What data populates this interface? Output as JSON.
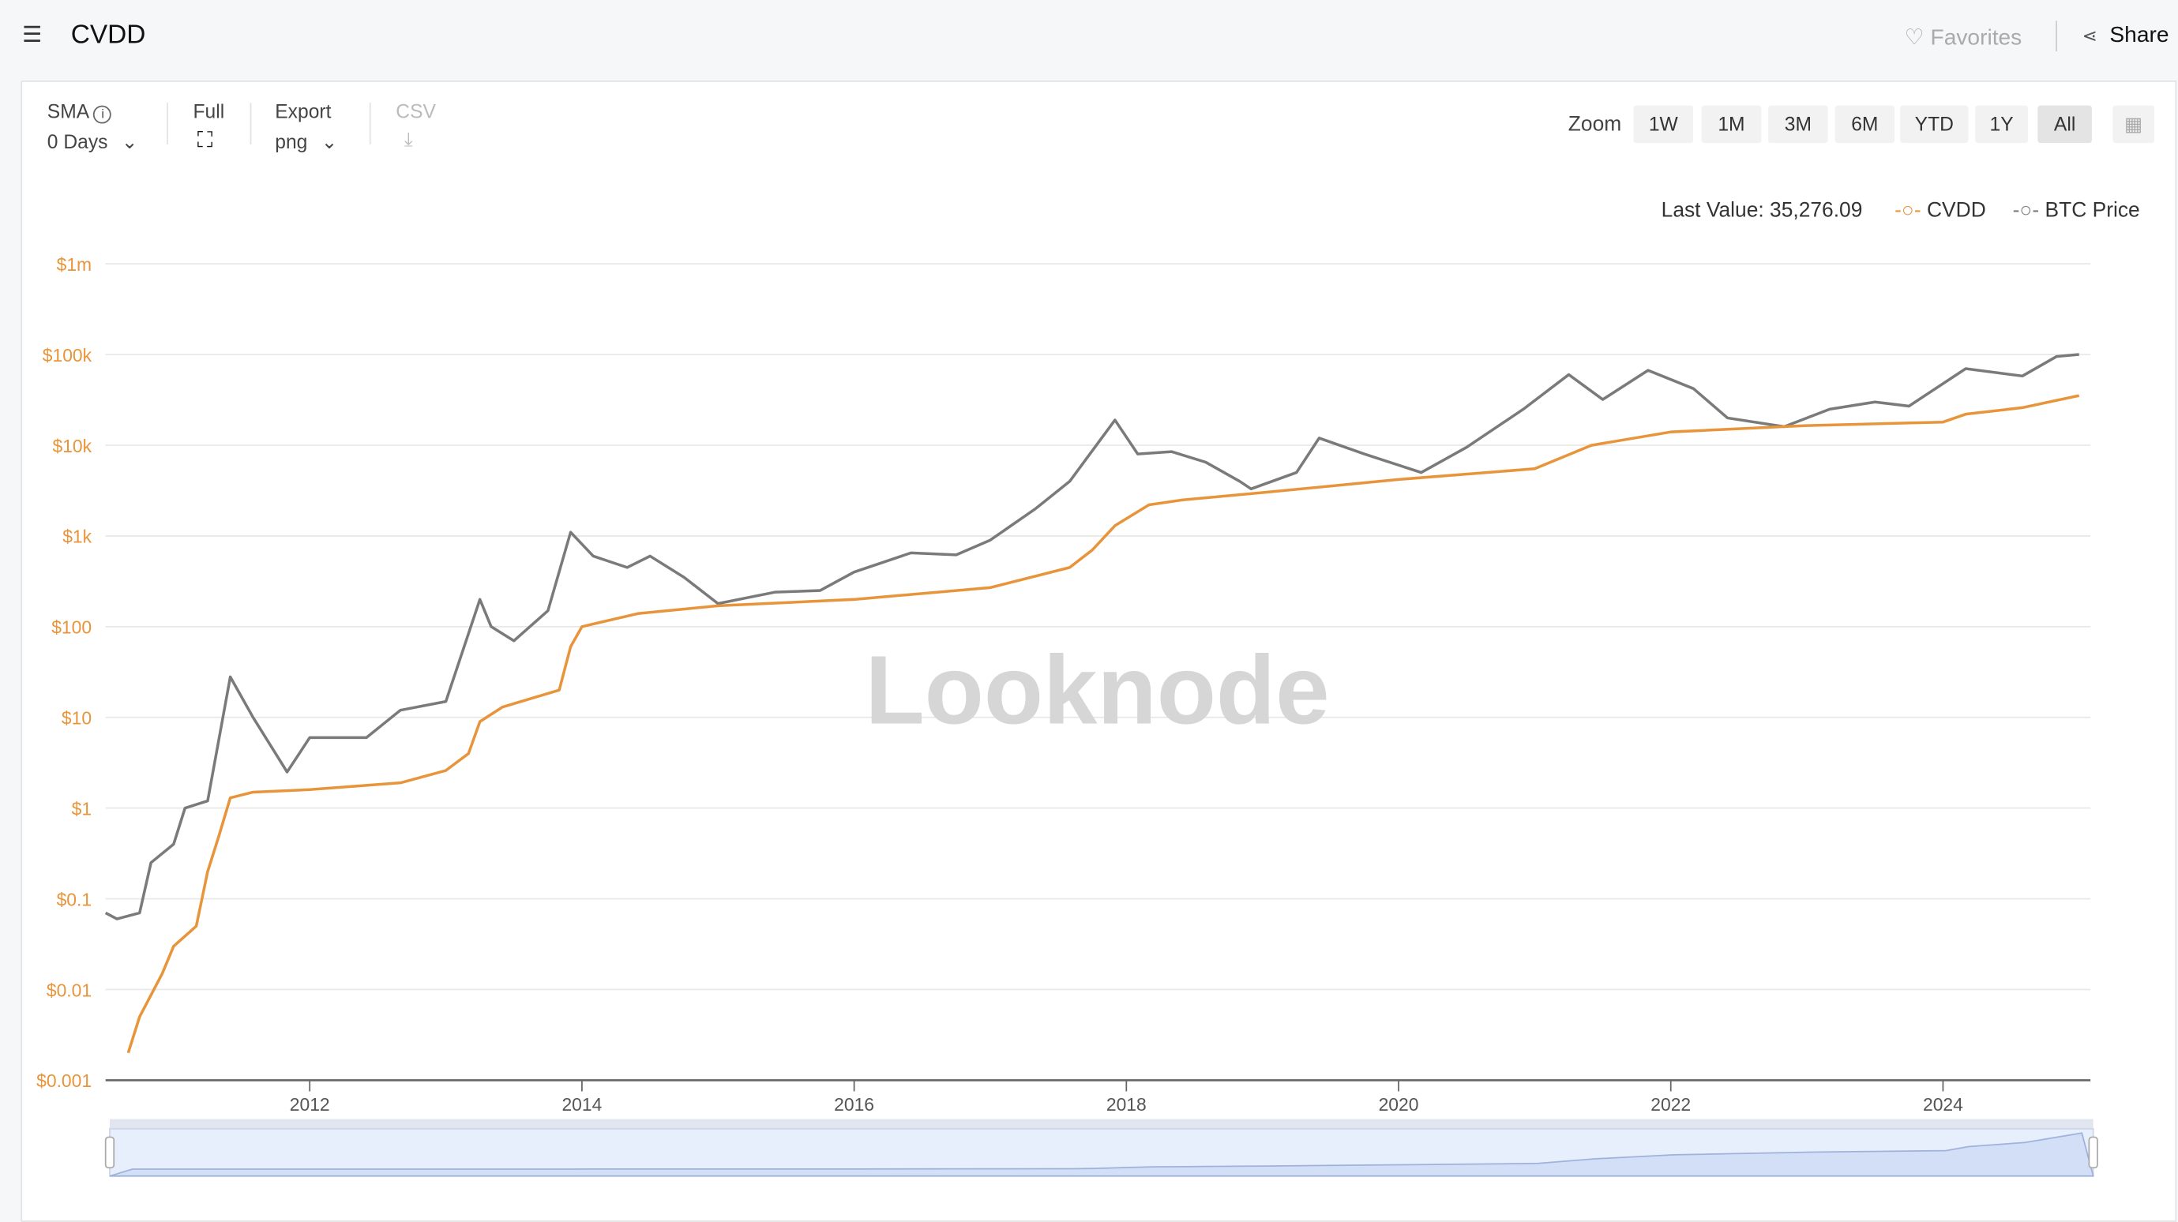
{
  "header": {
    "title": "CVDD",
    "favorites_label": "Favorites",
    "share_label": "Share"
  },
  "controls": {
    "sma_label": "SMA",
    "sma_value": "0 Days",
    "full_label": "Full",
    "export_label": "Export",
    "export_value": "png",
    "csv_label": "CSV",
    "zoom_label": "Zoom",
    "zoom_options": [
      "1W",
      "1M",
      "3M",
      "6M",
      "YTD",
      "1Y",
      "All"
    ],
    "zoom_selected": "All"
  },
  "legend": {
    "last_value": "Last Value: 35,276.09",
    "items": [
      "CVDD",
      "BTC Price"
    ]
  },
  "watermark": "Looknode",
  "colors": {
    "cvdd": "#e8943a",
    "btc": "#7a7a7a",
    "navigator": "#d6e2f8"
  },
  "chart_data": {
    "type": "line",
    "y_scale": "log",
    "ylim": [
      0.001,
      1000000
    ],
    "y_ticks": [
      "$0.001",
      "$0.01",
      "$0.1",
      "$1",
      "$10",
      "$100",
      "$1k",
      "$10k",
      "$100k",
      "$1m"
    ],
    "x_ticks": [
      "2012",
      "2014",
      "2016",
      "2018",
      "2020",
      "2022",
      "2024"
    ],
    "xlim": [
      "2010-07",
      "2025-02"
    ],
    "grid": true,
    "legend_position": "top-right",
    "series": [
      {
        "name": "CVDD",
        "color": "#e8943a",
        "points": [
          [
            "2010-09",
            0.002
          ],
          [
            "2010-10",
            0.005
          ],
          [
            "2010-12",
            0.015
          ],
          [
            "2011-01",
            0.03
          ],
          [
            "2011-03",
            0.05
          ],
          [
            "2011-04",
            0.2
          ],
          [
            "2011-05",
            0.5
          ],
          [
            "2011-06",
            1.3
          ],
          [
            "2011-08",
            1.5
          ],
          [
            "2012-01",
            1.6
          ],
          [
            "2012-09",
            1.9
          ],
          [
            "2013-01",
            2.6
          ],
          [
            "2013-03",
            4
          ],
          [
            "2013-04",
            9
          ],
          [
            "2013-06",
            13
          ],
          [
            "2013-11",
            20
          ],
          [
            "2013-12",
            60
          ],
          [
            "2014-01",
            100
          ],
          [
            "2014-06",
            140
          ],
          [
            "2015-01",
            170
          ],
          [
            "2016-01",
            200
          ],
          [
            "2017-01",
            270
          ],
          [
            "2017-08",
            450
          ],
          [
            "2017-10",
            700
          ],
          [
            "2017-12",
            1300
          ],
          [
            "2018-03",
            2200
          ],
          [
            "2018-06",
            2500
          ],
          [
            "2019-01",
            3000
          ],
          [
            "2020-01",
            4200
          ],
          [
            "2021-01",
            5500
          ],
          [
            "2021-06",
            10000
          ],
          [
            "2022-01",
            14000
          ],
          [
            "2023-01",
            16500
          ],
          [
            "2024-01",
            18000
          ],
          [
            "2024-03",
            22000
          ],
          [
            "2024-08",
            26000
          ],
          [
            "2025-01",
            35276.09
          ]
        ]
      },
      {
        "name": "BTC Price",
        "color": "#7a7a7a",
        "points": [
          [
            "2010-07",
            0.07
          ],
          [
            "2010-08",
            0.06
          ],
          [
            "2010-10",
            0.07
          ],
          [
            "2010-11",
            0.25
          ],
          [
            "2011-01",
            0.4
          ],
          [
            "2011-02",
            1
          ],
          [
            "2011-04",
            1.2
          ],
          [
            "2011-06",
            28
          ],
          [
            "2011-08",
            10
          ],
          [
            "2011-11",
            2.5
          ],
          [
            "2012-01",
            6
          ],
          [
            "2012-06",
            6
          ],
          [
            "2012-09",
            12
          ],
          [
            "2013-01",
            15
          ],
          [
            "2013-04",
            200
          ],
          [
            "2013-05",
            100
          ],
          [
            "2013-07",
            70
          ],
          [
            "2013-10",
            150
          ],
          [
            "2013-12",
            1100
          ],
          [
            "2014-02",
            600
          ],
          [
            "2014-05",
            450
          ],
          [
            "2014-07",
            600
          ],
          [
            "2014-10",
            350
          ],
          [
            "2015-01",
            180
          ],
          [
            "2015-06",
            240
          ],
          [
            "2015-10",
            250
          ],
          [
            "2016-01",
            400
          ],
          [
            "2016-06",
            650
          ],
          [
            "2016-10",
            620
          ],
          [
            "2017-01",
            900
          ],
          [
            "2017-05",
            2000
          ],
          [
            "2017-08",
            4000
          ],
          [
            "2017-12",
            19000
          ],
          [
            "2018-02",
            8000
          ],
          [
            "2018-05",
            8500
          ],
          [
            "2018-08",
            6500
          ],
          [
            "2018-11",
            4000
          ],
          [
            "2018-12",
            3300
          ],
          [
            "2019-04",
            5000
          ],
          [
            "2019-06",
            12000
          ],
          [
            "2019-10",
            8000
          ],
          [
            "2020-03",
            5000
          ],
          [
            "2020-07",
            9500
          ],
          [
            "2020-12",
            25000
          ],
          [
            "2021-04",
            60000
          ],
          [
            "2021-07",
            32000
          ],
          [
            "2021-11",
            67000
          ],
          [
            "2022-03",
            42000
          ],
          [
            "2022-06",
            20000
          ],
          [
            "2022-11",
            16000
          ],
          [
            "2023-03",
            25000
          ],
          [
            "2023-07",
            30000
          ],
          [
            "2023-10",
            27000
          ],
          [
            "2024-03",
            70000
          ],
          [
            "2024-08",
            58000
          ],
          [
            "2024-11",
            95000
          ],
          [
            "2025-01",
            100000
          ]
        ]
      }
    ]
  }
}
